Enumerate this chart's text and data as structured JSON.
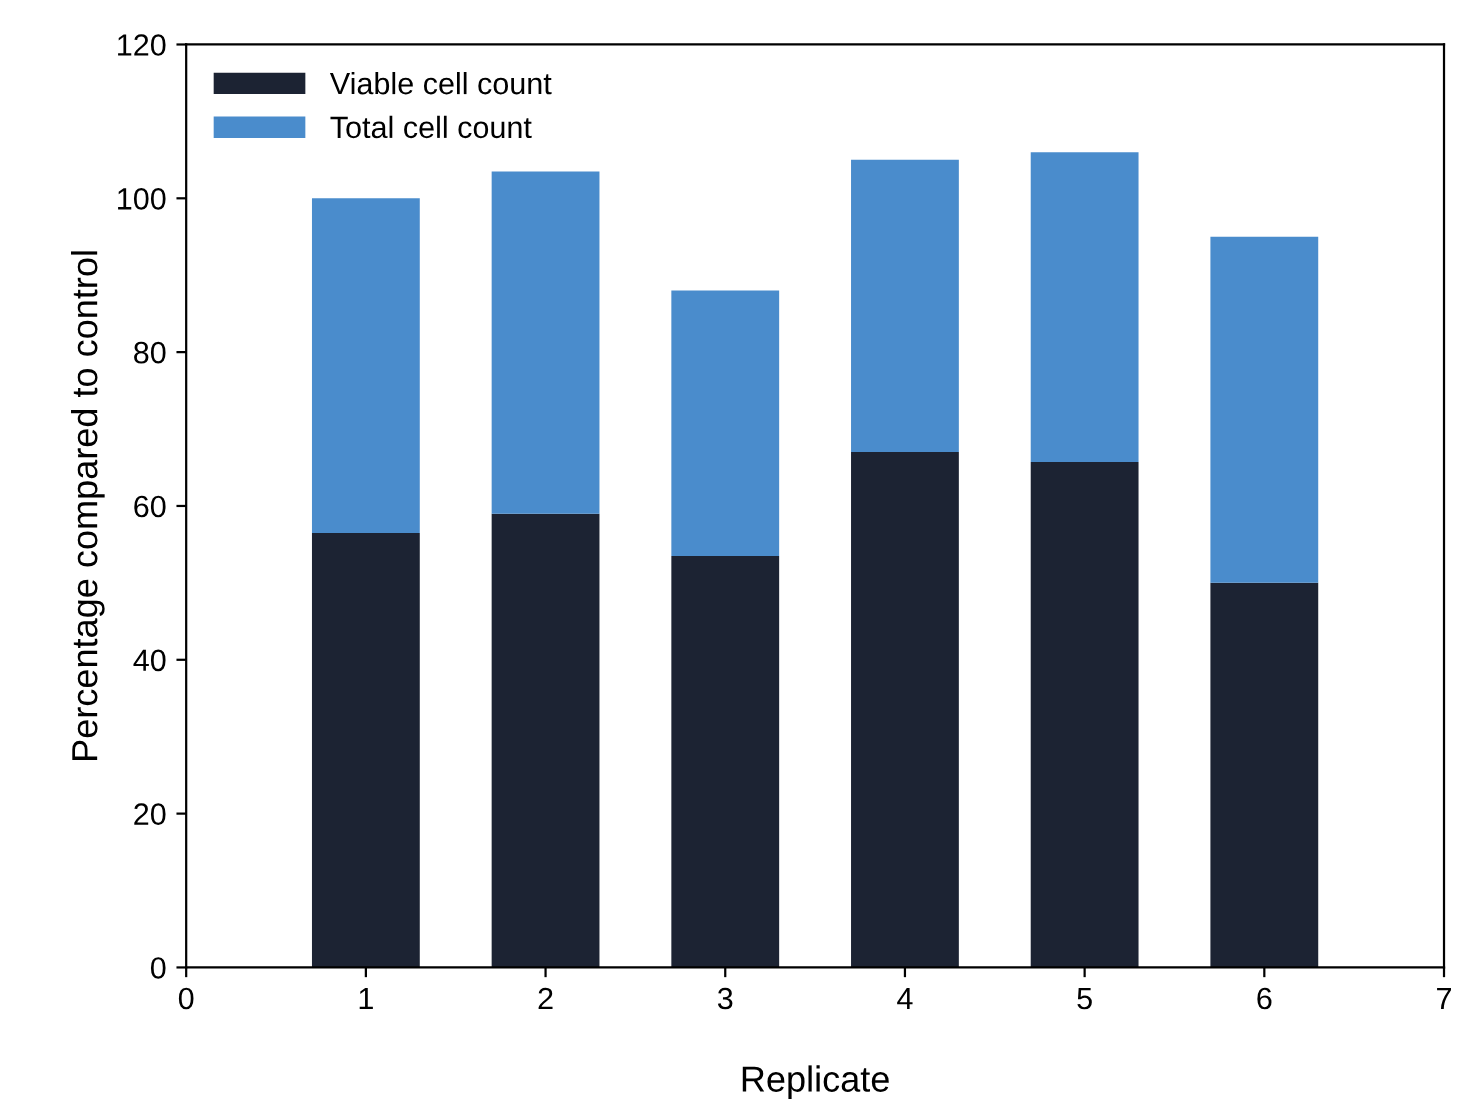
{
  "chart_data": {
    "type": "bar",
    "stacked": true,
    "xlabel": "Replicate",
    "ylabel": "Percentage compared to control",
    "x": [
      1,
      2,
      3,
      4,
      5,
      6
    ],
    "series": [
      {
        "name": "Viable cell count",
        "color": "#1c2333",
        "values": [
          56.5,
          59,
          53.5,
          67,
          65.7,
          50
        ]
      },
      {
        "name": "Total cell count",
        "color": "#4a8ccc",
        "values": [
          43.5,
          44.5,
          34.5,
          38,
          40.3,
          45
        ]
      }
    ],
    "xlim": [
      0,
      7
    ],
    "xticks": [
      0,
      1,
      2,
      3,
      4,
      5,
      6,
      7
    ],
    "ylim": [
      0,
      120
    ],
    "yticks": [
      0,
      20,
      40,
      60,
      80,
      100,
      120
    ],
    "grid": false,
    "legend": "top left"
  }
}
